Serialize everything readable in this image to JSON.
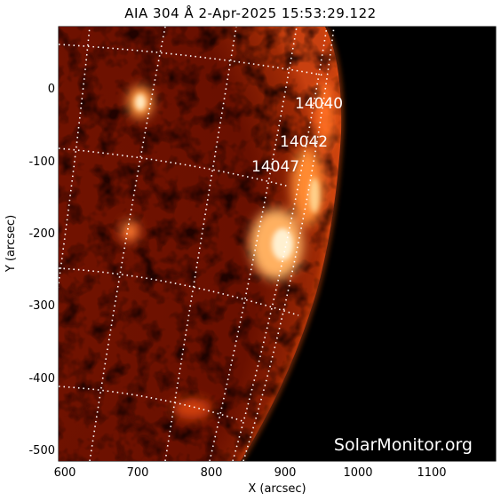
{
  "title": "AIA 304 Å  2-Apr-2025 15:53:29.122",
  "axes": {
    "x_label": "X (arcsec)",
    "y_label": "Y (arcsec)",
    "x_ticks": [
      "600",
      "700",
      "800",
      "900",
      "1000",
      "1100"
    ],
    "y_ticks": [
      "0",
      "-100",
      "-200",
      "-300",
      "-400",
      "-500"
    ]
  },
  "active_regions": [
    "14040",
    "14042",
    "14047"
  ],
  "watermark": "SolarMonitor.org",
  "colors": {
    "background": "#000000",
    "disk_dark": "#3a0600",
    "disk_mid": "#8a1a00",
    "bright": "#ffd9a0",
    "grid": "#ffffff"
  }
}
